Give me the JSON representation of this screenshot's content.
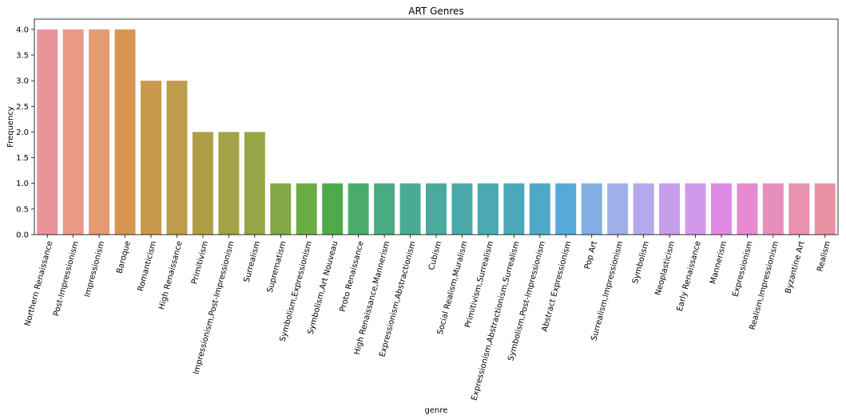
{
  "chart_data": {
    "type": "bar",
    "title": "ART Genres",
    "xlabel": "genre",
    "ylabel": "Frequency",
    "ylim": [
      0,
      4.2
    ],
    "yticks": [
      "0.0",
      "0.5",
      "1.0",
      "1.5",
      "2.0",
      "2.5",
      "3.0",
      "3.5",
      "4.0"
    ],
    "grid": false,
    "categories": [
      "Northern Renaissance",
      "Post-Impressionism",
      "Impressionism",
      "Baroque",
      "Romanticism",
      "High Renaissance",
      "Primitivism",
      "Impressionism,Post-Impressionism",
      "Surrealism",
      "Suprematism",
      "Symbolism,Expressionism",
      "Symbolism,Art Nouveau",
      "Proto Renaissance",
      "High Renaissance,Mannerism",
      "Expressionism,Abstractionism",
      "Cubism",
      "Social Realism,Muralism",
      "Primitivism,Surrealism",
      "Expressionism,Abstractionism,Surrealism",
      "Symbolism,Post-Impressionism",
      "Abstract Expressionism",
      "Pop Art",
      "Surrealism,Impressionism",
      "Symbolism",
      "Neoplasticism",
      "Early Renaissance",
      "Mannerism",
      "Expressionism",
      "Realism,Impressionism",
      "Byzantine Art",
      "Realism"
    ],
    "values": [
      4,
      4,
      4,
      4,
      3,
      3,
      2,
      2,
      2,
      1,
      1,
      1,
      1,
      1,
      1,
      1,
      1,
      1,
      1,
      1,
      1,
      1,
      1,
      1,
      1,
      1,
      1,
      1,
      1,
      1,
      1
    ],
    "colors": [
      "#e8949b",
      "#e89a87",
      "#e49a72",
      "#d89552",
      "#c99a4d",
      "#bf9c4a",
      "#b09e47",
      "#a3a246",
      "#96a646",
      "#83a845",
      "#6bac44",
      "#4fab4a",
      "#4aab6c",
      "#4aab82",
      "#49ab92",
      "#49ab9e",
      "#4aa9a9",
      "#4aa9b3",
      "#4ba8bb",
      "#4ea8c7",
      "#57a9d9",
      "#83aee3",
      "#9fb0e8",
      "#b3a9ec",
      "#c59eec",
      "#d298ea",
      "#e08ae6",
      "#e78ad0",
      "#e88ebc",
      "#e891b1",
      "#e893a4"
    ]
  }
}
